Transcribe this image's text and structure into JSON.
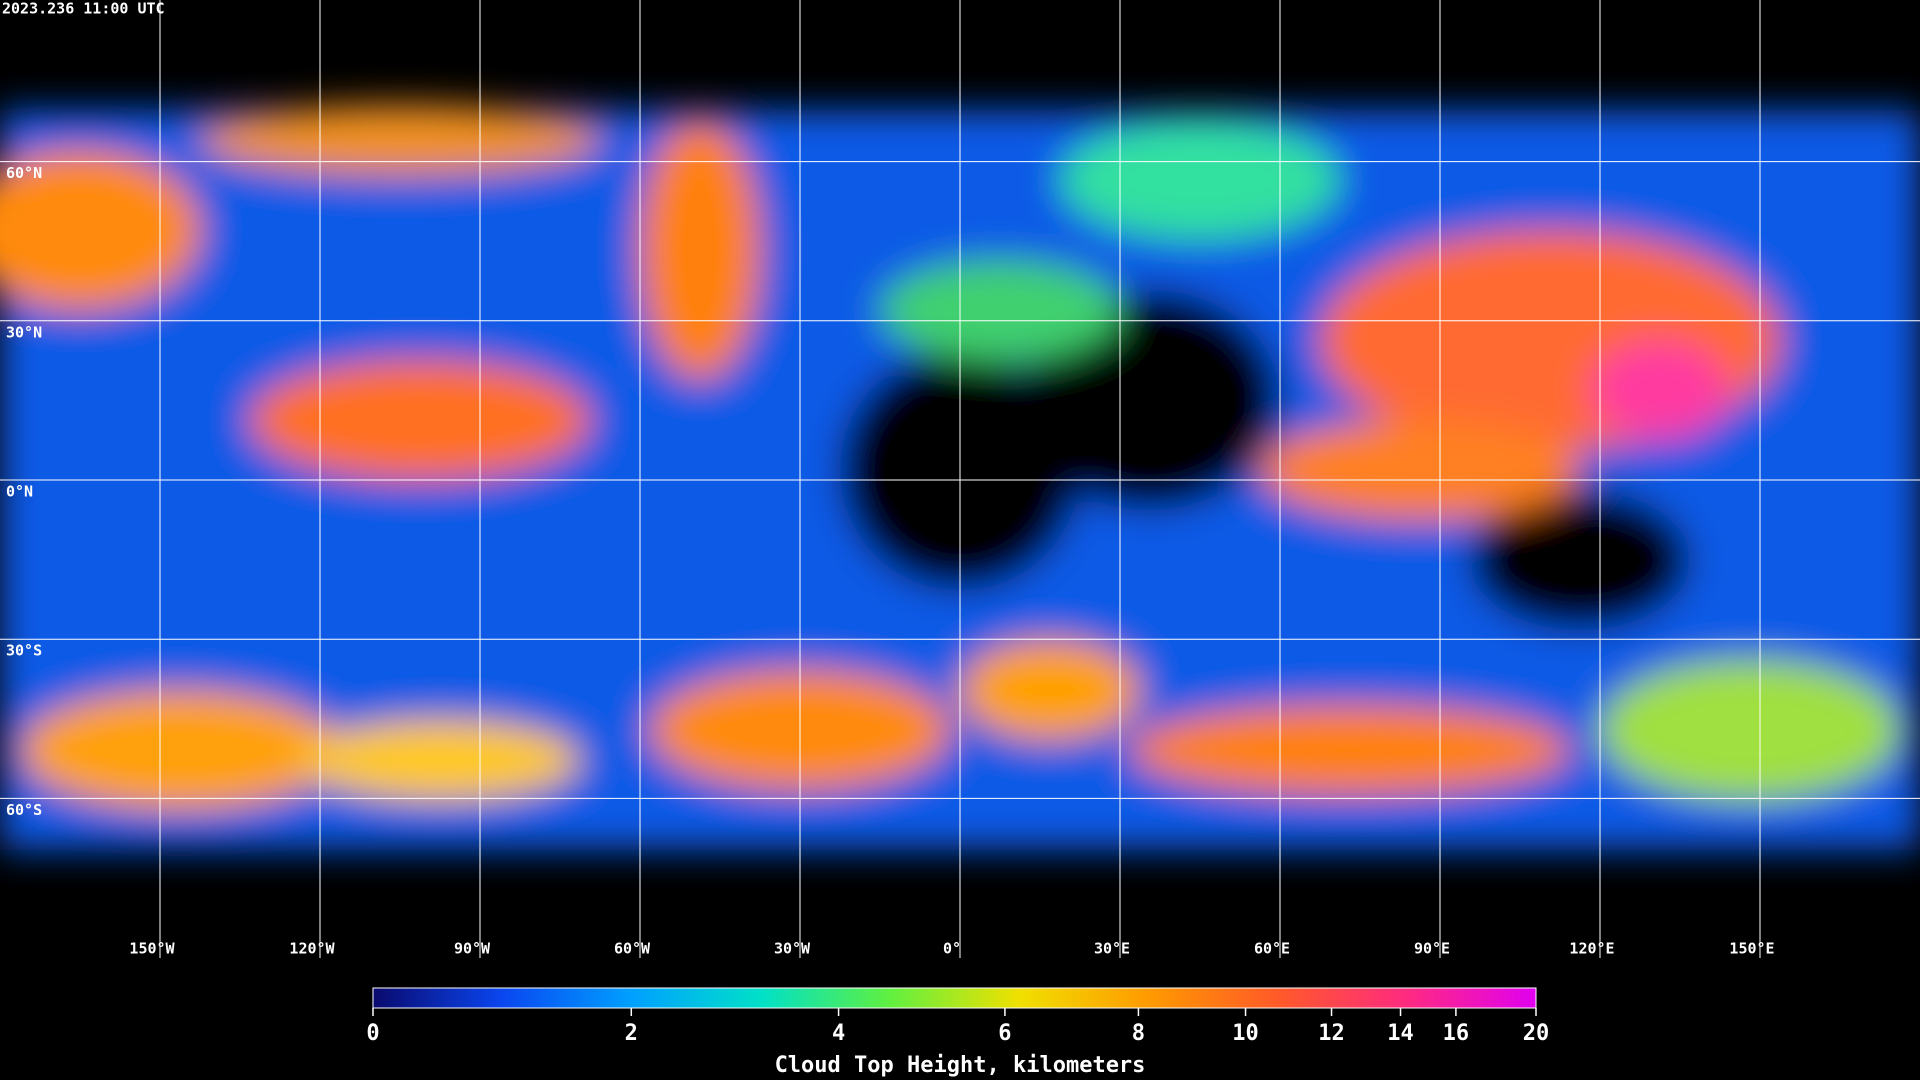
{
  "timestamp": "2023.236 11:00 UTC",
  "map": {
    "grid": true,
    "lat_ticks": [
      {
        "value": 60,
        "label": "60°N"
      },
      {
        "value": 30,
        "label": "30°N"
      },
      {
        "value": 0,
        "label": "0°N"
      },
      {
        "value": -30,
        "label": "30°S"
      },
      {
        "value": -60,
        "label": "60°S"
      }
    ],
    "lon_ticks": [
      {
        "value": -150,
        "label": "150°W"
      },
      {
        "value": -120,
        "label": "120°W"
      },
      {
        "value": -90,
        "label": "90°W"
      },
      {
        "value": -60,
        "label": "60°W"
      },
      {
        "value": -30,
        "label": "30°W"
      },
      {
        "value": 0,
        "label": "0°"
      },
      {
        "value": 30,
        "label": "30°E"
      },
      {
        "value": 60,
        "label": "60°E"
      },
      {
        "value": 90,
        "label": "90°E"
      },
      {
        "value": 120,
        "label": "120°E"
      },
      {
        "value": 150,
        "label": "150°E"
      }
    ]
  },
  "colorbar": {
    "title": "Cloud Top Height, kilometers",
    "range": [
      0,
      20
    ],
    "ticks": [
      0,
      2,
      4,
      6,
      8,
      10,
      12,
      14,
      16,
      20
    ],
    "colors": [
      "#0a0a6e",
      "#0a46f0",
      "#00a0ff",
      "#00e0c8",
      "#60f040",
      "#f0e000",
      "#ff9a00",
      "#ff5a28",
      "#ff2a80",
      "#e000f0"
    ]
  }
}
